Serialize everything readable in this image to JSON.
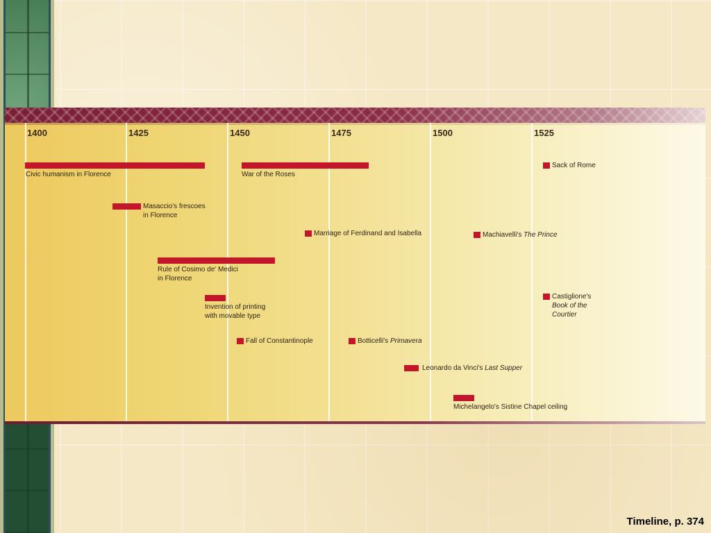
{
  "caption": "Timeline, p. 374",
  "colors": {
    "event_marker": "#c4162a",
    "band": "#7a1e35"
  },
  "years": [
    "1400",
    "1425",
    "1450",
    "1475",
    "1500",
    "1525"
  ],
  "events": [
    {
      "id": "civic",
      "label": "Civic humanism in Florence",
      "italic": ""
    },
    {
      "id": "roses",
      "label": "War of the Roses",
      "italic": ""
    },
    {
      "id": "sack",
      "label": "Sack of Rome",
      "italic": ""
    },
    {
      "id": "masaccio",
      "label": "Masaccio's frescoes",
      "label2": "in Florence",
      "italic": ""
    },
    {
      "id": "marriage",
      "label": "Marriage of Ferdinand and Isabella",
      "italic": ""
    },
    {
      "id": "prince",
      "label": "Machiavelli's ",
      "italic": "The Prince"
    },
    {
      "id": "cosimo",
      "label": "Rule of Cosimo de' Medici",
      "label2": "in Florence",
      "italic": ""
    },
    {
      "id": "printing",
      "label": "Invention of printing",
      "label2": "with movable type",
      "italic": ""
    },
    {
      "id": "courtier",
      "label": "Castiglione's",
      "italic": "Book of the",
      "italic2": "Courtier"
    },
    {
      "id": "constantinople",
      "label": "Fall of Constantinople",
      "italic": ""
    },
    {
      "id": "primavera",
      "label": "Botticelli's ",
      "italic": "Primavera"
    },
    {
      "id": "supper",
      "label": "Leonardo da Vinci's ",
      "italic": "Last Supper"
    },
    {
      "id": "sistine",
      "label": "Michelangelo's Sistine Chapel ceiling",
      "italic": ""
    }
  ]
}
